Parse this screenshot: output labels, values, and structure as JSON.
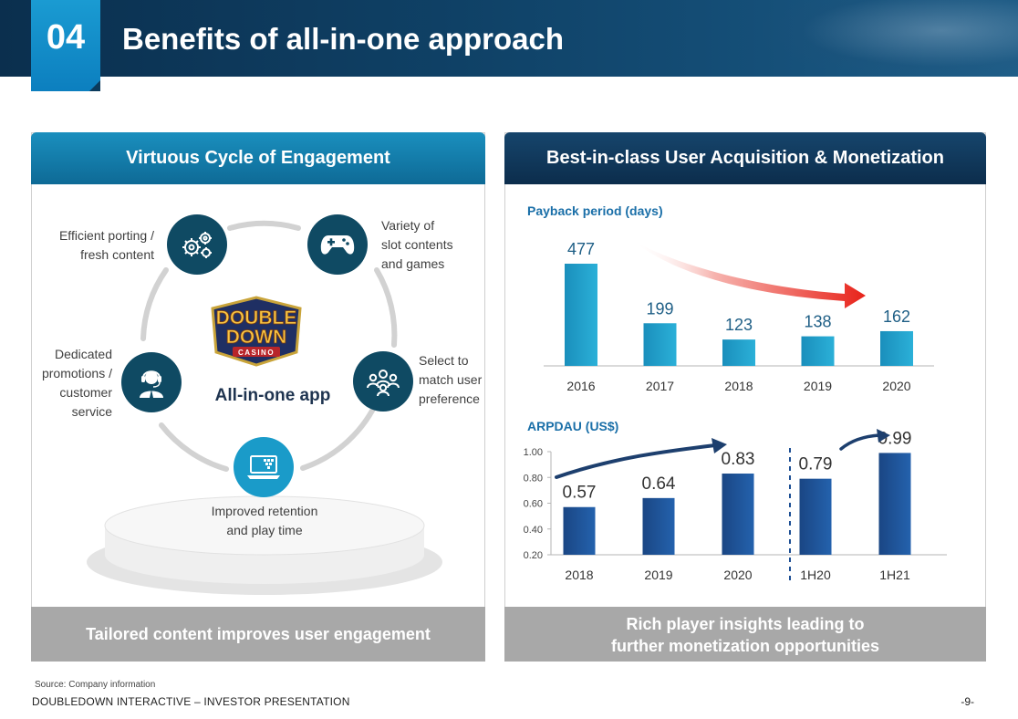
{
  "header": {
    "section_number": "04",
    "title": "Benefits of all-in-one approach"
  },
  "left_panel": {
    "heading": "Virtuous Cycle of Engagement",
    "hub_label": "All-in-one app",
    "logo_text": [
      "DOUBLE",
      "DOWN",
      "CASINO"
    ],
    "nodes": [
      {
        "icon": "gears-icon",
        "label_lines": [
          "Efficient porting /",
          "fresh content"
        ]
      },
      {
        "icon": "gamepad-icon",
        "label_lines": [
          "Variety of",
          "slot contents",
          "and games"
        ]
      },
      {
        "icon": "people-group-icon",
        "label_lines": [
          "Select to",
          "match user",
          "preference"
        ]
      },
      {
        "icon": "laptop-icon",
        "label_lines": [
          "Improved retention",
          "and play time"
        ]
      },
      {
        "icon": "headset-agent-icon",
        "label_lines": [
          "Dedicated",
          "promotions /",
          "customer",
          "service"
        ]
      }
    ],
    "footer": "Tailored content improves user engagement"
  },
  "right_panel": {
    "heading": "Best-in-class User Acquisition & Monetization",
    "footer_lines": [
      "Rich player insights leading to",
      "further monetization opportunities"
    ]
  },
  "colors": {
    "header_navy": "#0f4166",
    "accent_blue": "#1a9bd2",
    "payback_bar": "#1e9bc6",
    "arpdau_bar": "#1d4f94",
    "trend_arrow_red": "#e8231a",
    "chart_title_blue": "#1a6fa8",
    "footer_gray": "#a8a8a8"
  },
  "chart_data": [
    {
      "type": "bar",
      "title": "Payback period (days)",
      "categories": [
        "2016",
        "2017",
        "2018",
        "2019",
        "2020"
      ],
      "values": [
        477,
        199,
        123,
        138,
        162
      ],
      "value_labels": [
        "477",
        "199",
        "123",
        "138",
        "162"
      ],
      "grid": false,
      "annotations": [
        "red trend arrow from 2016 toward 2020"
      ]
    },
    {
      "type": "bar",
      "title": "ARPDAU (US$)",
      "categories": [
        "2018",
        "2019",
        "2020",
        "1H20",
        "1H21"
      ],
      "values": [
        0.57,
        0.64,
        0.83,
        0.79,
        0.99
      ],
      "value_labels": [
        "0.57",
        "0.64",
        "0.83",
        "0.79",
        "0.99"
      ],
      "yticks": [
        "0.20",
        "0.40",
        "0.60",
        "0.80",
        "1.00"
      ],
      "ylim": [
        0.2,
        1.0
      ],
      "grid": false,
      "annotations": [
        "growth arrow 2018 to 2020",
        "growth arrow 1H20 to 1H21",
        "dashed divider between 2020 and 1H20"
      ]
    }
  ],
  "footer": {
    "source": "Source: Company information",
    "company": "DOUBLEDOWN INTERACTIVE – INVESTOR PRESENTATION",
    "page": "-9-"
  }
}
